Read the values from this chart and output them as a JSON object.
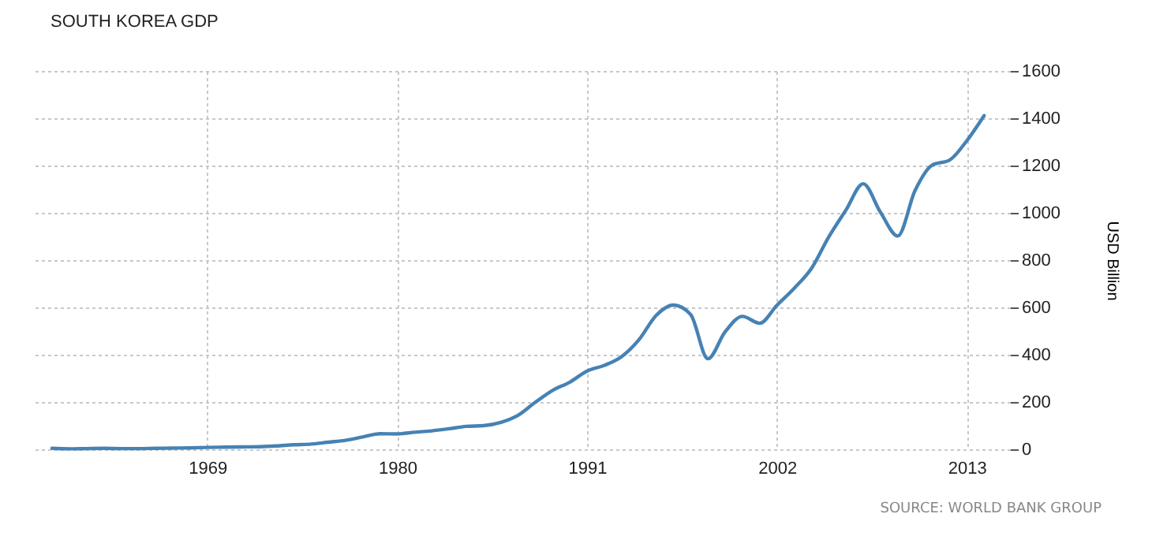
{
  "chart_data": {
    "type": "line",
    "title": "SOUTH KOREA GDP",
    "ylabel": "USD Billion",
    "annotations": [
      "SOURCE: WORLD BANK GROUP"
    ],
    "x": [
      1960,
      1961,
      1962,
      1963,
      1964,
      1965,
      1966,
      1967,
      1968,
      1969,
      1970,
      1971,
      1972,
      1973,
      1974,
      1975,
      1976,
      1977,
      1978,
      1979,
      1980,
      1981,
      1982,
      1983,
      1984,
      1985,
      1986,
      1987,
      1988,
      1989,
      1990,
      1991,
      1992,
      1993,
      1994,
      1995,
      1996,
      1997,
      1998,
      1999,
      2000,
      2001,
      2002,
      2003,
      2004,
      2005,
      2006,
      2007,
      2008,
      2009,
      2010,
      2011,
      2012,
      2013,
      2014
    ],
    "series": [
      {
        "color": "#4682b4",
        "values": [
          4,
          2,
          3,
          4,
          3,
          3,
          4,
          5,
          6,
          8,
          9,
          10,
          11,
          14,
          19,
          22,
          30,
          38,
          52,
          66,
          65,
          72,
          78,
          87,
          97,
          100,
          114,
          144,
          199,
          249,
          284,
          331,
          355,
          392,
          463,
          566,
          610,
          570,
          383,
          497,
          562,
          533,
          609,
          681,
          765,
          898,
          1012,
          1123,
          1002,
          902,
          1094,
          1202,
          1223,
          1305,
          1411
        ]
      }
    ],
    "xlim": [
      1959,
      2015.5
    ],
    "xticks": [
      1969,
      1980,
      1991,
      2002,
      2013
    ],
    "ylim": [
      0,
      1600
    ],
    "yticks": [
      0,
      200,
      400,
      600,
      800,
      1000,
      1200,
      1400,
      1600
    ],
    "grid": true,
    "legend": false,
    "line_style": "solid",
    "marker": "none"
  }
}
